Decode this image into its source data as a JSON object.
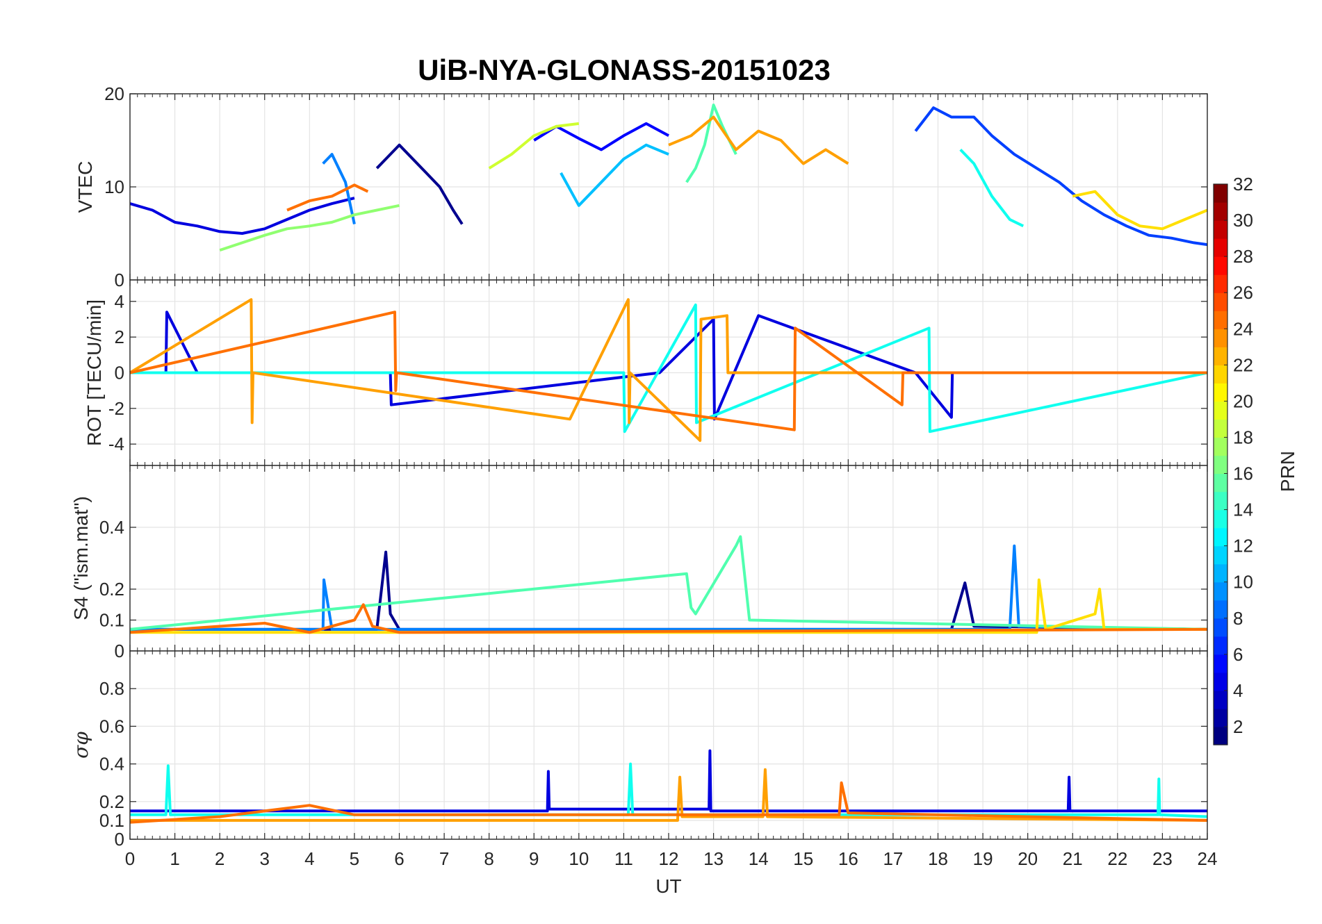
{
  "chart_data": {
    "title": "UiB-NYA-GLONASS-20151023",
    "xlabel": "UT",
    "xlim": [
      0,
      24
    ],
    "x_ticks": [
      "0",
      "1",
      "2",
      "3",
      "4",
      "5",
      "6",
      "7",
      "8",
      "9",
      "10",
      "11",
      "12",
      "13",
      "14",
      "15",
      "16",
      "17",
      "18",
      "19",
      "20",
      "21",
      "22",
      "23",
      "24"
    ],
    "grid": true,
    "colorbar": {
      "label": "PRN",
      "colormap": "jet",
      "range": [
        1,
        32
      ],
      "ticks": [
        "2",
        "4",
        "6",
        "8",
        "10",
        "12",
        "14",
        "16",
        "18",
        "20",
        "22",
        "24",
        "26",
        "28",
        "30",
        "32"
      ],
      "location": "right"
    },
    "panels": [
      {
        "type": "line",
        "ylabel": "VTEC",
        "ylim": [
          0,
          20
        ],
        "y_ticks": [
          "0",
          "10",
          "20"
        ],
        "series": [
          {
            "color": "#00008F",
            "x": [
              5.5,
              5.8,
              6.0,
              6.3,
              6.6,
              6.9,
              7.2,
              7.4
            ],
            "y": [
              12,
              13.5,
              14.5,
              13,
              11.5,
              10,
              7.5,
              6
            ]
          },
          {
            "color": "#0000DF",
            "x": [
              0,
              0.5,
              1.0,
              1.5,
              2.0,
              2.5,
              3.0,
              3.5,
              4.0,
              4.5,
              5.0
            ],
            "y": [
              8.2,
              7.5,
              6.2,
              5.8,
              5.2,
              5.0,
              5.5,
              6.5,
              7.5,
              8.2,
              8.8
            ]
          },
          {
            "color": "#0000FF",
            "x": [
              9.0,
              9.5,
              10.0,
              10.5,
              11.0,
              11.5,
              12.0
            ],
            "y": [
              15.0,
              16.5,
              15.2,
              14.0,
              15.5,
              16.8,
              15.5
            ]
          },
          {
            "color": "#0040FF",
            "x": [
              17.5,
              17.9,
              18.3,
              18.8,
              19.2,
              19.7,
              20.2,
              20.7,
              21.2,
              21.7,
              22.2,
              22.7,
              23.2,
              23.7,
              24.0
            ],
            "y": [
              16,
              18.5,
              17.5,
              17.5,
              15.5,
              13.5,
              12,
              10.5,
              8.5,
              7.0,
              5.8,
              4.8,
              4.5,
              4.0,
              3.8
            ]
          },
          {
            "color": "#0080FF",
            "x": [
              4.3,
              4.5,
              4.8,
              5.0
            ],
            "y": [
              12.5,
              13.5,
              10.5,
              6.0
            ]
          },
          {
            "color": "#00C0FF",
            "x": [
              9.6,
              10.0,
              10.5,
              11.0,
              11.5,
              12.0
            ],
            "y": [
              11.5,
              8.0,
              10.5,
              13.0,
              14.5,
              13.5
            ]
          },
          {
            "color": "#10FFEF",
            "x": [
              18.5,
              18.8,
              19.2,
              19.6,
              19.9
            ],
            "y": [
              14,
              12.5,
              9.0,
              6.5,
              5.8
            ]
          },
          {
            "color": "#50FFAF",
            "x": [
              12.4,
              12.6,
              12.8,
              13.0,
              13.2,
              13.5
            ],
            "y": [
              10.5,
              12.0,
              14.5,
              18.8,
              16.5,
              13.5
            ]
          },
          {
            "color": "#90FF70",
            "x": [
              2.0,
              2.5,
              3.0,
              3.5,
              4.0,
              4.5,
              5.0,
              5.5,
              6.0
            ],
            "y": [
              3.2,
              4.0,
              4.8,
              5.5,
              5.8,
              6.2,
              7.0,
              7.5,
              8.0
            ]
          },
          {
            "color": "#CFFF30",
            "x": [
              8.0,
              8.5,
              9.0,
              9.5,
              10.0
            ],
            "y": [
              12.0,
              13.5,
              15.5,
              16.5,
              16.8
            ]
          },
          {
            "color": "#FFDF00",
            "x": [
              21.0,
              21.5,
              22.0,
              22.5,
              23.0,
              23.5,
              24.0
            ],
            "y": [
              9.0,
              9.5,
              7.0,
              5.8,
              5.5,
              6.5,
              7.5
            ]
          },
          {
            "color": "#FFA000",
            "x": [
              12.0,
              12.5,
              13.0,
              13.5,
              14.0,
              14.5,
              15.0,
              15.5,
              16.0
            ],
            "y": [
              14.5,
              15.5,
              17.5,
              14.0,
              16.0,
              15.0,
              12.5,
              14.0,
              12.5
            ]
          },
          {
            "color": "#FF7000",
            "x": [
              3.5,
              4.0,
              4.5,
              5.0,
              5.3
            ],
            "y": [
              7.5,
              8.5,
              9.0,
              10.2,
              9.5
            ]
          }
        ]
      },
      {
        "type": "line",
        "ylabel": "ROT [TECU/min]",
        "ylim": [
          -5.2,
          5.2
        ],
        "y_ticks": [
          "-4",
          "-2",
          "0",
          "2",
          "4"
        ],
        "series": [
          {
            "color": "#0000DF",
            "x": [
              0,
              0.8,
              0.82,
              1.5,
              4.0,
              5.8,
              5.82,
              11.8,
              13.0,
              13.02,
              14.0,
              17.5,
              18.3,
              18.32,
              24.0
            ],
            "y": [
              0,
              0,
              3.4,
              0,
              0,
              0,
              -1.8,
              0,
              3.0,
              -2.6,
              3.2,
              0,
              -2.5,
              0,
              0
            ]
          },
          {
            "color": "#10FFEF",
            "x": [
              0,
              6.0,
              11.0,
              11.02,
              12.6,
              12.62,
              17.8,
              17.82,
              24.0
            ],
            "y": [
              0,
              0,
              0,
              -3.3,
              3.8,
              -2.8,
              2.5,
              -3.3,
              0
            ]
          },
          {
            "color": "#FFA000",
            "x": [
              0,
              2.7,
              2.72,
              2.74,
              9.8,
              11.1,
              11.12,
              11.14,
              12.7,
              12.72,
              13.3,
              13.32,
              24.0
            ],
            "y": [
              0,
              4.1,
              -2.8,
              0,
              -2.6,
              4.1,
              -2.8,
              0,
              -3.8,
              3.0,
              3.2,
              0,
              0
            ]
          },
          {
            "color": "#FF7000",
            "x": [
              0,
              5.9,
              5.92,
              5.94,
              14.8,
              14.82,
              17.2,
              17.22,
              24.0
            ],
            "y": [
              0,
              3.4,
              -1.0,
              0,
              -3.2,
              2.5,
              -1.8,
              0,
              0
            ]
          }
        ]
      },
      {
        "type": "line",
        "ylabel": "S4 (\"ism.mat\")",
        "ylim": [
          0,
          0.6
        ],
        "y_ticks": [
          "0",
          "0.1",
          "0.2",
          "0.4"
        ],
        "series": [
          {
            "color": "#00008F",
            "x": [
              0,
              5.5,
              5.7,
              5.8,
              6.0,
              18.3,
              18.6,
              18.8,
              24.0
            ],
            "y": [
              0.07,
              0.07,
              0.32,
              0.12,
              0.07,
              0.07,
              0.22,
              0.08,
              0.07
            ]
          },
          {
            "color": "#0080FF",
            "x": [
              0,
              4.3,
              4.32,
              4.5,
              19.6,
              19.7,
              19.8,
              24.0
            ],
            "y": [
              0.07,
              0.07,
              0.23,
              0.07,
              0.07,
              0.34,
              0.08,
              0.07
            ]
          },
          {
            "color": "#50FFAF",
            "x": [
              0,
              12.4,
              12.5,
              12.6,
              13.5,
              13.6,
              13.8,
              24.0
            ],
            "y": [
              0.07,
              0.25,
              0.14,
              0.12,
              0.34,
              0.37,
              0.1,
              0.07
            ]
          },
          {
            "color": "#FFDF00",
            "x": [
              0,
              20.2,
              20.25,
              20.4,
              21.5,
              21.6,
              21.7,
              24.0
            ],
            "y": [
              0.06,
              0.06,
              0.23,
              0.07,
              0.12,
              0.2,
              0.07,
              0.07
            ]
          },
          {
            "color": "#FF7000",
            "x": [
              0,
              3.0,
              4.0,
              5.0,
              5.2,
              5.4,
              6.0,
              24.0
            ],
            "y": [
              0.06,
              0.09,
              0.06,
              0.1,
              0.15,
              0.08,
              0.06,
              0.07
            ]
          }
        ]
      },
      {
        "type": "line",
        "ylabel": "σφ",
        "ylim": [
          0,
          1
        ],
        "y_ticks": [
          "0",
          "0.1",
          "0.2",
          "0.4",
          "0.6",
          "0.8"
        ],
        "series": [
          {
            "color": "#0000DF",
            "x": [
              0,
              9.3,
              9.32,
              9.34,
              12.9,
              12.92,
              12.94,
              20.9,
              20.92,
              20.94,
              24.0
            ],
            "y": [
              0.15,
              0.15,
              0.36,
              0.16,
              0.16,
              0.47,
              0.15,
              0.15,
              0.33,
              0.15,
              0.15
            ]
          },
          {
            "color": "#10FFEF",
            "x": [
              0,
              0.8,
              0.85,
              0.9,
              11.1,
              11.15,
              11.2,
              22.9,
              22.92,
              22.94,
              24.0
            ],
            "y": [
              0.13,
              0.13,
              0.39,
              0.13,
              0.13,
              0.4,
              0.13,
              0.13,
              0.32,
              0.13,
              0.12
            ]
          },
          {
            "color": "#FFA000",
            "x": [
              0,
              12.2,
              12.25,
              12.3,
              14.1,
              14.15,
              14.2,
              24.0
            ],
            "y": [
              0.1,
              0.1,
              0.33,
              0.12,
              0.12,
              0.37,
              0.12,
              0.1
            ]
          },
          {
            "color": "#FF7000",
            "x": [
              0,
              2.0,
              4.0,
              5.0,
              15.8,
              15.85,
              16.0,
              24.0
            ],
            "y": [
              0.09,
              0.12,
              0.18,
              0.13,
              0.13,
              0.3,
              0.14,
              0.1
            ]
          }
        ]
      }
    ]
  }
}
